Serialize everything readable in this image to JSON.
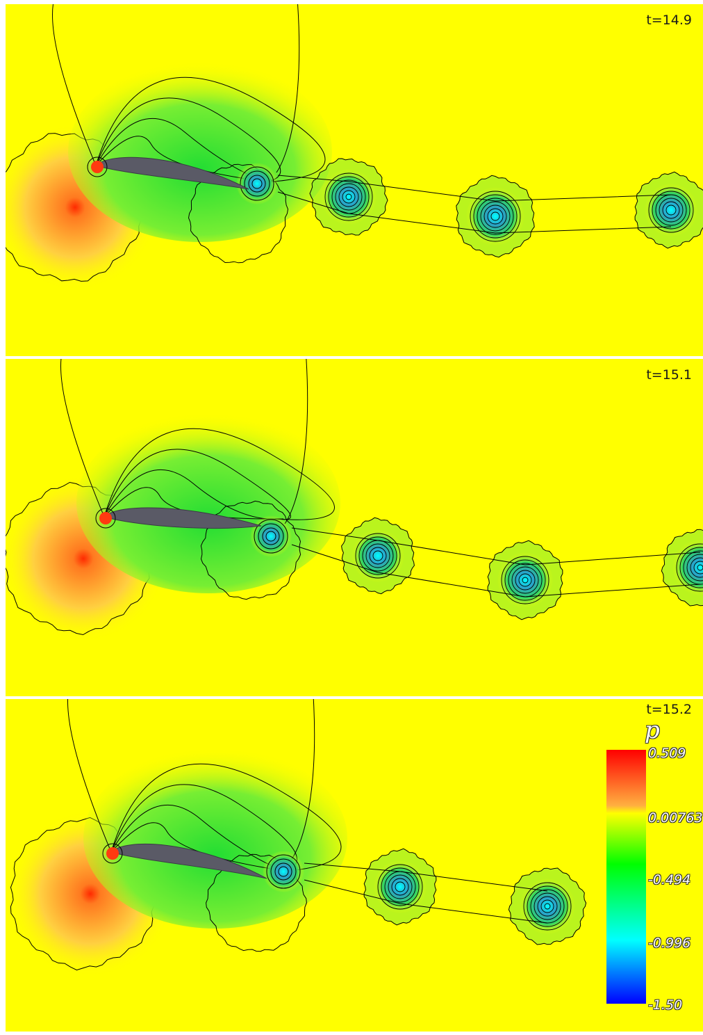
{
  "panels": [
    {
      "time_label": "t=14.9"
    },
    {
      "time_label": "t=15.1"
    },
    {
      "time_label": "t=15.2"
    }
  ],
  "colorbar": {
    "title": "p",
    "ticks": [
      "0.509",
      "0.00763",
      "-0.494",
      "-0.996",
      "-1.50"
    ],
    "range": [
      -1.5,
      0.509
    ],
    "colors": [
      "#ff0000",
      "#ffff00",
      "#00ff00",
      "#00ffff",
      "#0000ff"
    ]
  },
  "colors": {
    "background": "#ffff00",
    "airfoil": "#5a5a66",
    "contour_line": "#000000",
    "suction": "#33e633",
    "vortex_core": "#2b7fd6",
    "stagnation": "#ff3a00"
  },
  "icons": [
    "airfoil-shape",
    "vortex-icon"
  ]
}
